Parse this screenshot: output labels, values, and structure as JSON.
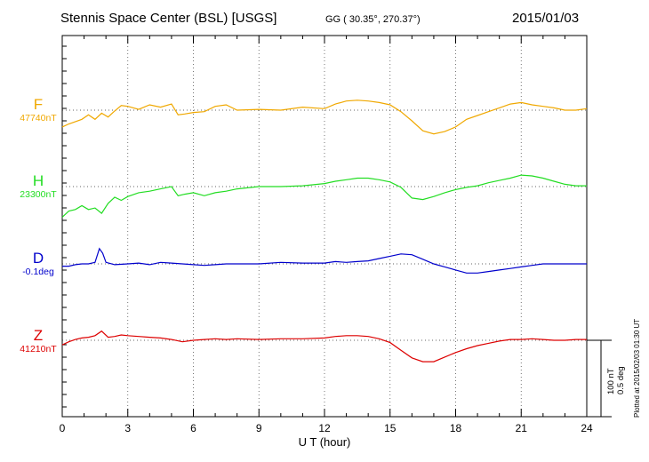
{
  "header": {
    "title": "Stennis Space Center (BSL)  [USGS]",
    "coords": "GG ( 30.35°, 270.37°)",
    "date": "2015/01/03"
  },
  "side": {
    "scale_nt": "100 nT",
    "scale_deg": "0.5 deg",
    "plotted": "Plotted at 2015/02/03 01:30 UT"
  },
  "chart_data": {
    "type": "line",
    "xlabel": "U T (hour)",
    "xlim": [
      0,
      24
    ],
    "xticks": [
      "0",
      "3",
      "6",
      "9",
      "12",
      "15",
      "18",
      "21",
      "24"
    ],
    "grid": true,
    "channels": [
      {
        "key": "F",
        "name": "F",
        "baseline_label": "47740nT",
        "color": "#f0a800",
        "x": [
          0,
          0.3,
          0.6,
          0.9,
          1.2,
          1.5,
          1.8,
          2.1,
          2.4,
          2.7,
          3.0,
          3.5,
          4.0,
          4.5,
          5.0,
          5.3,
          5.6,
          6.0,
          6.5,
          7.0,
          7.5,
          8.0,
          9.0,
          10.0,
          11.0,
          12.0,
          12.5,
          13.0,
          13.5,
          14.0,
          14.5,
          15.0,
          15.5,
          16.0,
          16.5,
          17.0,
          17.5,
          18.0,
          18.5,
          19.0,
          19.5,
          20.0,
          20.5,
          21.0,
          21.5,
          22.0,
          22.5,
          23.0,
          23.5,
          24.0
        ],
        "y": [
          -22,
          -18,
          -15,
          -12,
          -6,
          -12,
          -4,
          -9,
          -1,
          6,
          5,
          1,
          7,
          4,
          8,
          -6,
          -5,
          -3,
          -2,
          5,
          7,
          0,
          1,
          0,
          4,
          2,
          8,
          12,
          13,
          12,
          10,
          7,
          -2,
          -14,
          -27,
          -31,
          -28,
          -22,
          -12,
          -7,
          -2,
          3,
          8,
          10,
          7,
          5,
          3,
          0,
          0,
          2
        ]
      },
      {
        "key": "H",
        "name": "H",
        "baseline_label": "23300nT",
        "color": "#22dd22",
        "x": [
          0,
          0.3,
          0.6,
          0.9,
          1.2,
          1.5,
          1.8,
          2.1,
          2.4,
          2.7,
          3.0,
          3.5,
          4.0,
          4.5,
          5.0,
          5.3,
          5.6,
          6.0,
          6.5,
          7.0,
          7.5,
          8.0,
          9.0,
          10.0,
          11.0,
          12.0,
          12.5,
          13.0,
          13.5,
          14.0,
          14.5,
          15.0,
          15.5,
          16.0,
          16.5,
          17.0,
          17.5,
          18.0,
          18.5,
          19.0,
          19.5,
          20.0,
          20.5,
          21.0,
          21.5,
          22.0,
          22.5,
          23.0,
          23.5,
          24.0
        ],
        "y": [
          -40,
          -32,
          -30,
          -25,
          -30,
          -28,
          -35,
          -22,
          -14,
          -18,
          -13,
          -8,
          -6,
          -3,
          0,
          -12,
          -10,
          -8,
          -12,
          -8,
          -6,
          -3,
          0,
          0,
          1,
          4,
          7,
          9,
          11,
          11,
          9,
          6,
          -1,
          -15,
          -17,
          -13,
          -8,
          -4,
          -1,
          1,
          5,
          8,
          11,
          15,
          14,
          11,
          7,
          3,
          1,
          1
        ]
      },
      {
        "key": "D",
        "name": "D",
        "baseline_label": "-0.1deg",
        "color": "#0000cc",
        "x": [
          0,
          0.3,
          0.6,
          0.9,
          1.2,
          1.5,
          1.7,
          1.85,
          2.0,
          2.4,
          3.0,
          3.5,
          4.0,
          4.5,
          5.0,
          5.5,
          6.0,
          6.5,
          7.0,
          7.5,
          8.0,
          9.0,
          10.0,
          11.0,
          12.0,
          12.5,
          13.0,
          13.5,
          14.0,
          14.5,
          15.0,
          15.5,
          16.0,
          16.5,
          17.0,
          17.5,
          18.0,
          18.5,
          19.0,
          19.5,
          20.0,
          20.5,
          21.0,
          21.5,
          22.0,
          22.5,
          23.0,
          23.5,
          24.0
        ],
        "y": [
          -3,
          -3,
          -1,
          0,
          0,
          2,
          20,
          14,
          2,
          -1,
          0,
          1,
          -1,
          2,
          1,
          0,
          -1,
          -2,
          -1,
          0,
          0,
          0,
          2,
          1,
          1,
          3,
          2,
          3,
          4,
          7,
          10,
          13,
          12,
          6,
          0,
          -4,
          -8,
          -12,
          -12,
          -10,
          -8,
          -6,
          -4,
          -2,
          0,
          0,
          0,
          0,
          0
        ]
      },
      {
        "key": "Z",
        "name": "Z",
        "baseline_label": "41210nT",
        "color": "#dd0000",
        "x": [
          0,
          0.3,
          0.6,
          0.9,
          1.2,
          1.5,
          1.8,
          2.1,
          2.4,
          2.7,
          3.0,
          3.5,
          4.0,
          4.5,
          5.0,
          5.5,
          6.0,
          6.5,
          7.0,
          7.5,
          8.0,
          9.0,
          10.0,
          11.0,
          12.0,
          12.5,
          13.0,
          13.5,
          14.0,
          14.5,
          15.0,
          15.5,
          16.0,
          16.5,
          17.0,
          17.5,
          18.0,
          18.5,
          19.0,
          19.5,
          20.0,
          20.5,
          21.0,
          21.5,
          22.0,
          22.5,
          23.0,
          23.5,
          24.0
        ],
        "y": [
          -6,
          -2,
          1,
          3,
          4,
          6,
          12,
          4,
          5,
          7,
          6,
          5,
          4,
          3,
          1,
          -2,
          0,
          1,
          2,
          1,
          2,
          1,
          2,
          2,
          3,
          5,
          6,
          6,
          5,
          2,
          -3,
          -13,
          -23,
          -28,
          -28,
          -22,
          -16,
          -11,
          -7,
          -4,
          -1,
          1,
          1,
          2,
          1,
          0,
          0,
          1,
          1
        ]
      }
    ]
  }
}
